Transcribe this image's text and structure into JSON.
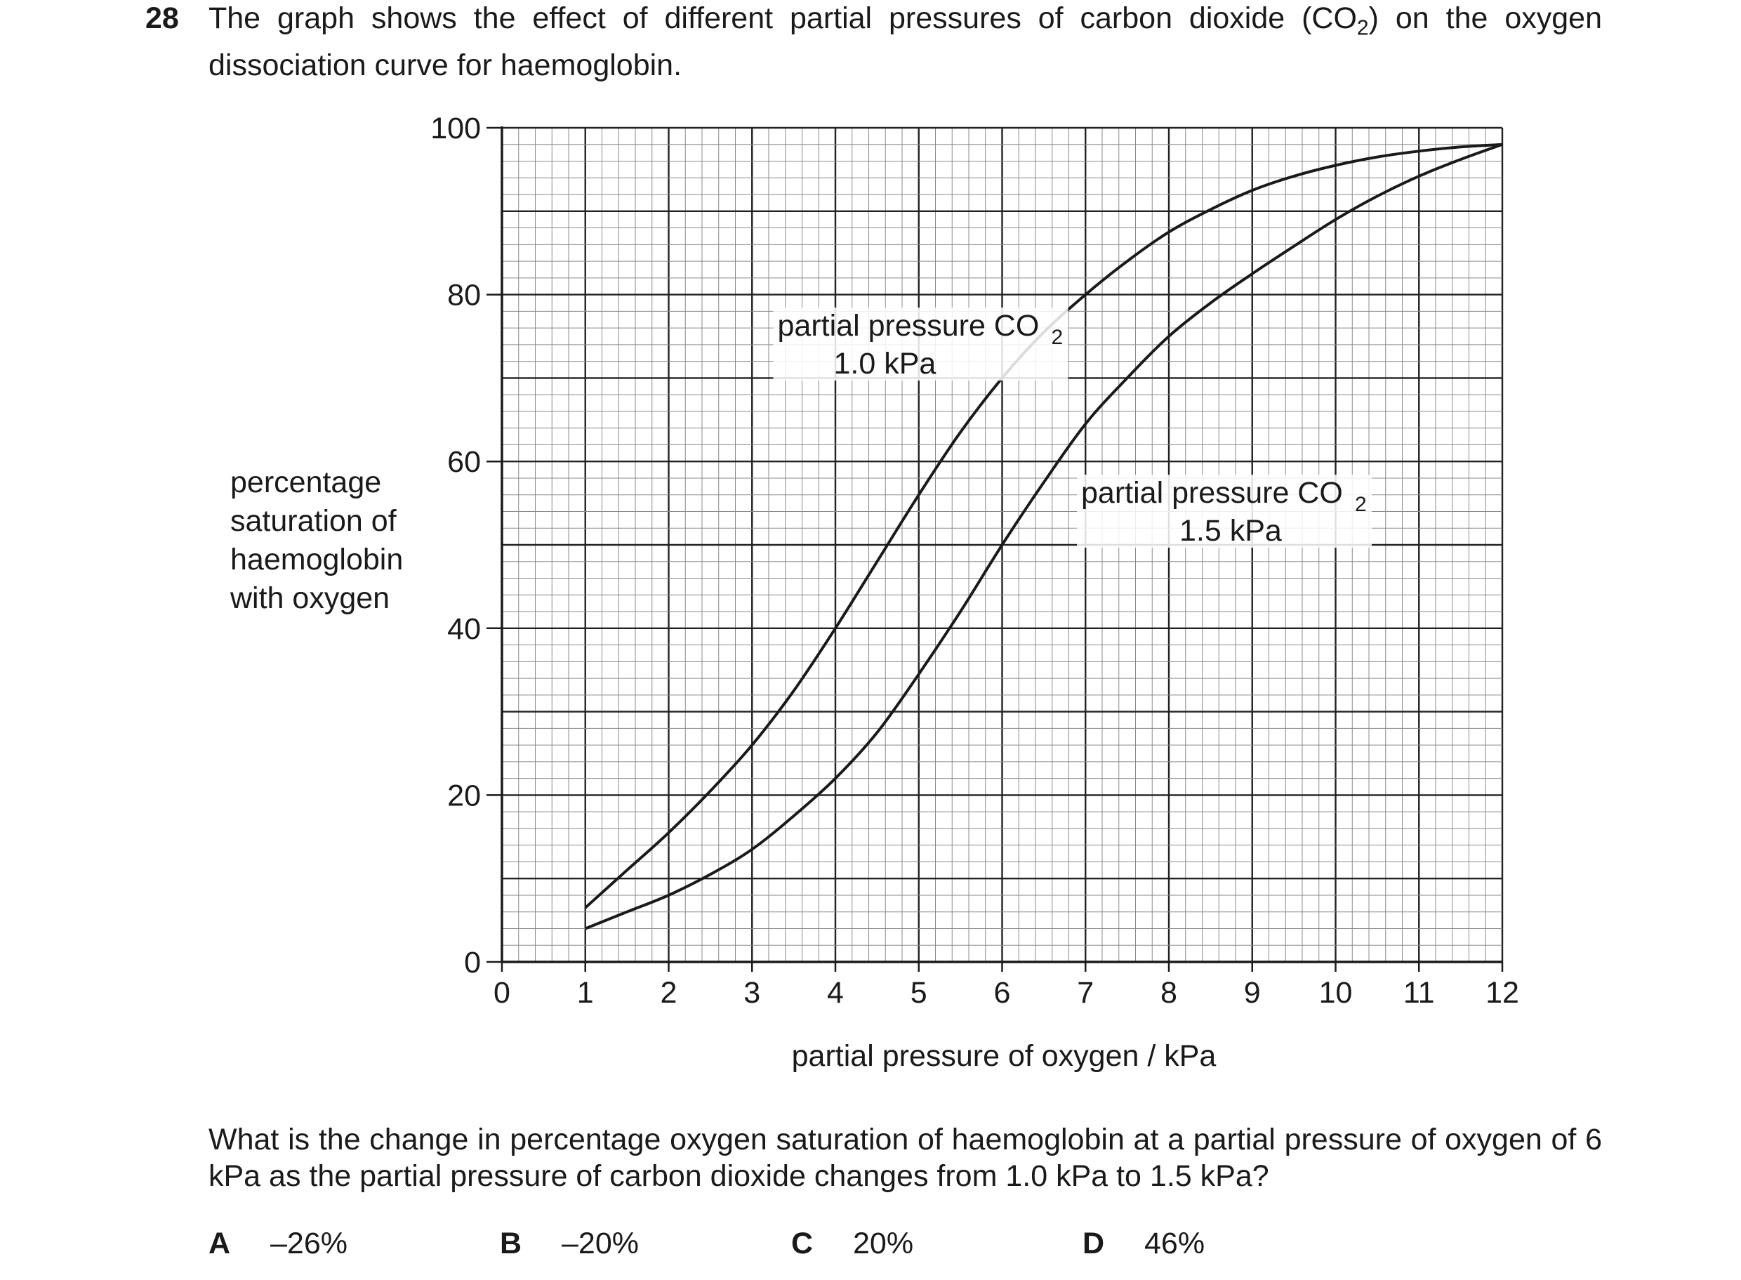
{
  "question": {
    "number": "28",
    "text_before": "The graph shows the effect of different partial pressures of carbon dioxide (CO",
    "text_sub": "2",
    "text_after": ") on the oxygen dissociation curve for haemoglobin.",
    "prompt": "What is the change in percentage oxygen saturation of haemoglobin at a partial pressure of oxygen of 6 kPa as the partial pressure of carbon dioxide changes from 1.0 kPa to 1.5 kPa?"
  },
  "options": [
    {
      "letter": "A",
      "text": "–26%"
    },
    {
      "letter": "B",
      "text": "–20%"
    },
    {
      "letter": "C",
      "text": "20%"
    },
    {
      "letter": "D",
      "text": "46%"
    }
  ],
  "chart_data": {
    "type": "line",
    "title": "",
    "xlabel": "partial pressure of oxygen / kPa",
    "ylabel_lines": [
      "percentage",
      "saturation of",
      "haemoglobin",
      "with oxygen"
    ],
    "xlim": [
      0,
      12
    ],
    "ylim": [
      0,
      100
    ],
    "x_ticks": [
      0,
      1,
      2,
      3,
      4,
      5,
      6,
      7,
      8,
      9,
      10,
      11,
      12
    ],
    "y_ticks": [
      0,
      20,
      40,
      60,
      80,
      100
    ],
    "grid": true,
    "series": [
      {
        "name": "partial pressure CO2 1.0 kPa",
        "label_line1": "partial pressure CO",
        "label_sub": "2",
        "label_line2": "1.0 kPa",
        "x": [
          1,
          1.5,
          2,
          2.5,
          3,
          3.5,
          4,
          4.5,
          5,
          5.5,
          6,
          6.5,
          7,
          7.5,
          8,
          8.5,
          9,
          9.5,
          10,
          10.5,
          11,
          11.5,
          12
        ],
        "y": [
          6.5,
          11,
          15.5,
          20.5,
          26,
          32.5,
          40,
          48,
          56,
          63.5,
          70,
          75.5,
          80,
          84,
          87.5,
          90.2,
          92.5,
          94.2,
          95.5,
          96.5,
          97.2,
          97.7,
          98
        ]
      },
      {
        "name": "partial pressure CO2 1.5 kPa",
        "label_line1": "partial pressure CO",
        "label_sub": "2",
        "label_line2": "1.5 kPa",
        "x": [
          1,
          1.5,
          2,
          2.5,
          3,
          3.5,
          4,
          4.5,
          5,
          5.5,
          6,
          6.5,
          7,
          7.5,
          8,
          8.5,
          9,
          9.5,
          10,
          10.5,
          11,
          11.5,
          12
        ],
        "y": [
          4,
          6,
          8,
          10.5,
          13.5,
          17.5,
          22,
          27.5,
          34.5,
          42,
          50,
          57.5,
          64.5,
          70,
          75,
          79,
          82.5,
          85.8,
          89,
          91.8,
          94.2,
          96.2,
          98
        ]
      }
    ]
  }
}
